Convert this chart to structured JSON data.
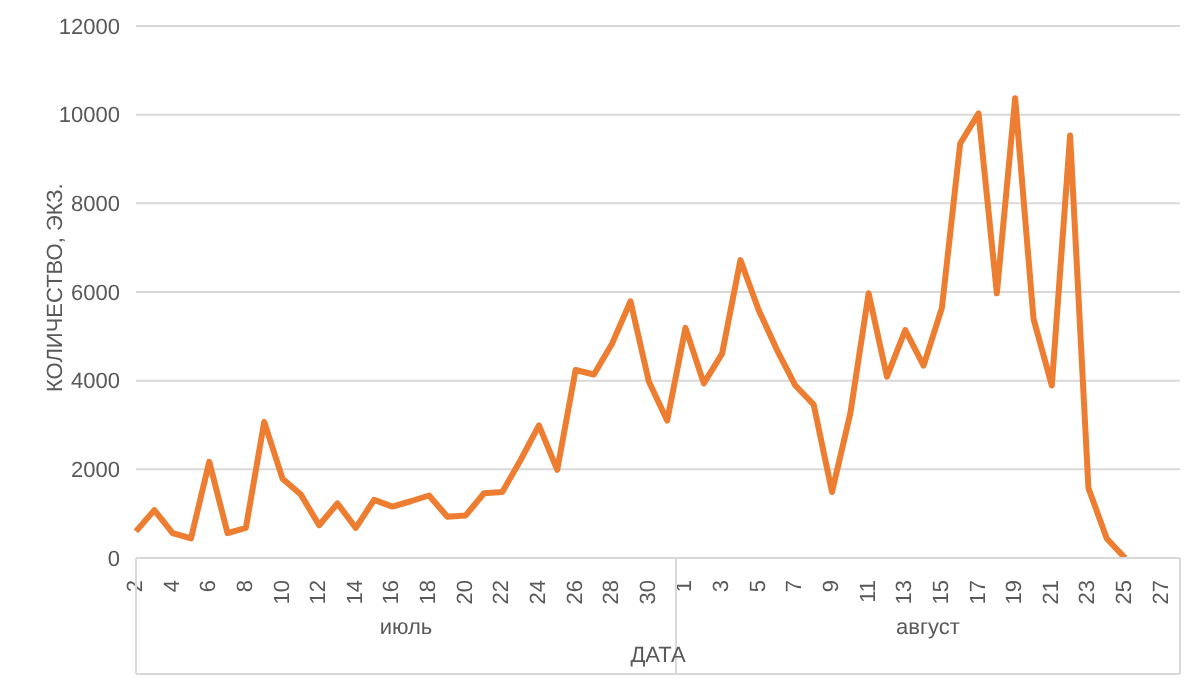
{
  "chart_data": {
    "type": "line",
    "xlabel": "ДАТА",
    "ylabel": "КОЛИЧЕСТВО, ЭКЗ.",
    "categories": [
      "2",
      null,
      "4",
      null,
      "6",
      null,
      "8",
      null,
      "10",
      null,
      "12",
      null,
      "14",
      null,
      "16",
      null,
      "18",
      null,
      "20",
      null,
      "22",
      null,
      "24",
      null,
      "26",
      null,
      "28",
      null,
      "30",
      null,
      "1",
      null,
      "3",
      null,
      "5",
      null,
      "7",
      null,
      "9",
      null,
      "11",
      null,
      "13",
      null,
      "15",
      null,
      "17",
      null,
      "19",
      null,
      "21",
      null,
      "23",
      null,
      "25",
      null,
      "27",
      null
    ],
    "annotations": [
      "июль",
      "август"
    ],
    "series": [
      {
        "color": "#ed7d31",
        "values": [
          600,
          1080,
          560,
          440,
          2170,
          560,
          680,
          3070,
          1790,
          1430,
          740,
          1230,
          680,
          1310,
          1160,
          1280,
          1410,
          930,
          960,
          1460,
          1490,
          2210,
          2990,
          1990,
          4240,
          4140,
          4840,
          5790,
          3980,
          3100,
          5190,
          3940,
          4610,
          6720,
          5590,
          4690,
          3890,
          3460,
          1490,
          3260,
          5970,
          4090,
          5140,
          4340,
          5640,
          9350,
          10030,
          5970,
          10370,
          5400,
          3890,
          9530,
          1580,
          440,
          0,
          null,
          null,
          null
        ]
      }
    ],
    "ylim": [
      0,
      12000
    ],
    "yticks": [
      0,
      2000,
      4000,
      6000,
      8000,
      10000,
      12000
    ],
    "grid": "y",
    "legend": false,
    "marker": "none",
    "line_style": "solid"
  }
}
